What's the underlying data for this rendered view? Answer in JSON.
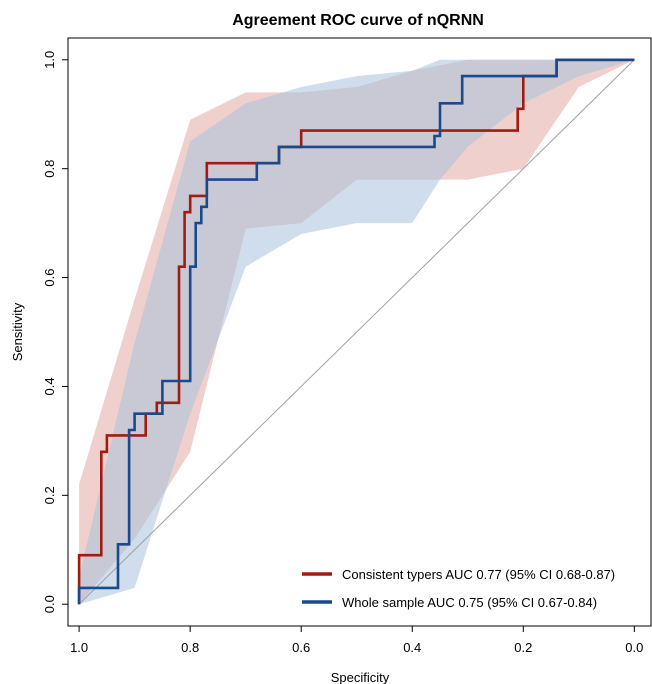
{
  "chart_data": {
    "type": "line",
    "title": "Agreement ROC curve of nQRNN",
    "xlabel": "Specificity",
    "ylabel": "Sensitivity",
    "xlim": [
      1.02,
      -0.03
    ],
    "ylim": [
      -0.04,
      1.04
    ],
    "x_reversed": true,
    "x_ticks": [
      1.0,
      0.8,
      0.6,
      0.4,
      0.2,
      0.0
    ],
    "x_tick_labels": [
      "1.0",
      "0.8",
      "0.6",
      "0.4",
      "0.2",
      "0.0"
    ],
    "y_ticks": [
      0.0,
      0.2,
      0.4,
      0.6,
      0.8,
      1.0
    ],
    "y_tick_labels": [
      "0.0",
      "0.2",
      "0.4",
      "0.6",
      "0.8",
      "1.0"
    ],
    "legend_position": "bottom-right",
    "reference_line": {
      "x": [
        1.0,
        0.0
      ],
      "y": [
        0.0,
        1.0
      ],
      "color": "#a0a0a0"
    },
    "series": [
      {
        "name": "Consistent typers AUC 0.77 (95% CI 0.68-0.87)",
        "color": "#a01c10",
        "band_color": "#e4a9a4",
        "specificity": [
          1.0,
          1.0,
          0.96,
          0.96,
          0.95,
          0.95,
          0.88,
          0.88,
          0.86,
          0.86,
          0.82,
          0.82,
          0.81,
          0.81,
          0.8,
          0.8,
          0.77,
          0.77,
          0.65,
          0.65,
          0.64,
          0.64,
          0.6,
          0.6,
          0.21,
          0.21,
          0.2,
          0.2,
          0.14,
          0.14,
          0.0
        ],
        "sensitivity": [
          0.0,
          0.09,
          0.09,
          0.28,
          0.28,
          0.31,
          0.31,
          0.35,
          0.35,
          0.37,
          0.37,
          0.62,
          0.62,
          0.72,
          0.72,
          0.75,
          0.75,
          0.81,
          0.81,
          0.81,
          0.81,
          0.84,
          0.84,
          0.87,
          0.87,
          0.91,
          0.91,
          0.97,
          0.97,
          1.0,
          1.0
        ],
        "ci_specificity": [
          1.0,
          0.9,
          0.8,
          0.7,
          0.6,
          0.5,
          0.4,
          0.3,
          0.2,
          0.1,
          0.0
        ],
        "ci_upper": [
          0.22,
          0.56,
          0.89,
          0.94,
          0.94,
          0.95,
          0.98,
          1.0,
          1.0,
          1.0,
          1.0
        ],
        "ci_lower": [
          0.0,
          0.12,
          0.28,
          0.69,
          0.7,
          0.78,
          0.78,
          0.78,
          0.8,
          0.95,
          1.0
        ]
      },
      {
        "name": "Whole sample AUC 0.75 (95% CI 0.67-0.84)",
        "color": "#1a4a8c",
        "band_color": "#a9c1dc",
        "specificity": [
          1.0,
          1.0,
          0.93,
          0.93,
          0.91,
          0.91,
          0.9,
          0.9,
          0.89,
          0.89,
          0.85,
          0.85,
          0.8,
          0.8,
          0.79,
          0.79,
          0.78,
          0.78,
          0.77,
          0.77,
          0.68,
          0.68,
          0.64,
          0.64,
          0.36,
          0.36,
          0.35,
          0.35,
          0.31,
          0.31,
          0.2,
          0.2,
          0.14,
          0.14,
          0.0
        ],
        "sensitivity": [
          0.0,
          0.03,
          0.03,
          0.11,
          0.11,
          0.32,
          0.32,
          0.35,
          0.35,
          0.35,
          0.35,
          0.41,
          0.41,
          0.62,
          0.62,
          0.7,
          0.7,
          0.73,
          0.73,
          0.78,
          0.78,
          0.81,
          0.81,
          0.84,
          0.84,
          0.86,
          0.86,
          0.92,
          0.92,
          0.97,
          0.97,
          0.97,
          0.97,
          1.0,
          1.0
        ],
        "ci_specificity": [
          1.0,
          0.9,
          0.8,
          0.7,
          0.6,
          0.5,
          0.4,
          0.35,
          0.3,
          0.2,
          0.1,
          0.0
        ],
        "ci_upper": [
          0.05,
          0.48,
          0.85,
          0.92,
          0.95,
          0.97,
          0.98,
          1.0,
          1.0,
          1.0,
          1.0,
          1.0
        ],
        "ci_lower": [
          0.0,
          0.03,
          0.35,
          0.62,
          0.68,
          0.7,
          0.7,
          0.78,
          0.84,
          0.92,
          0.97,
          1.0
        ]
      }
    ]
  }
}
